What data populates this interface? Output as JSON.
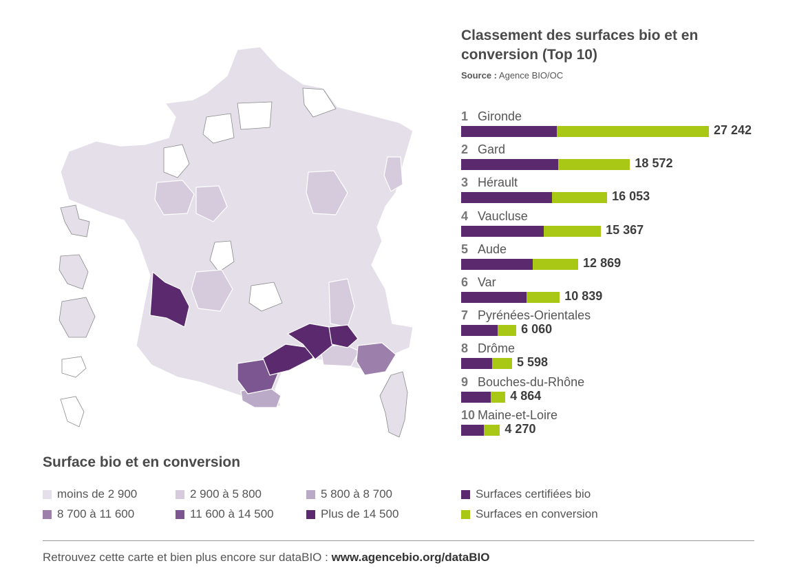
{
  "map": {
    "colors": {
      "lt2900": "#e4dfe9",
      "c2900_5800": "#d6cbdd",
      "c5800_8700": "#bba9c8",
      "c8700_11600": "#9c7fab",
      "c11600_14500": "#7c5690",
      "gt14500": "#5b2a6e",
      "border": "#ffffff",
      "outline": "#8a8a8a"
    }
  },
  "ranking": {
    "title": "Classement des surfaces bio et en conversion (Top 10)",
    "source_label": "Source :",
    "source_value": "Agence BIO/OC",
    "colors": {
      "bio": "#5b2a6e",
      "conversion": "#a8c815"
    },
    "items": [
      {
        "rank": "1",
        "name": "Gironde",
        "total": 27242,
        "total_label": "27 242",
        "bio": 10500
      },
      {
        "rank": "2",
        "name": "Gard",
        "total": 18572,
        "total_label": "18 572",
        "bio": 10700
      },
      {
        "rank": "3",
        "name": "Hérault",
        "total": 16053,
        "total_label": "16 053",
        "bio": 10000
      },
      {
        "rank": "4",
        "name": "Vaucluse",
        "total": 15367,
        "total_label": "15 367",
        "bio": 9050
      },
      {
        "rank": "5",
        "name": "Aude",
        "total": 12869,
        "total_label": "12 869",
        "bio": 7900
      },
      {
        "rank": "6",
        "name": "Var",
        "total": 10839,
        "total_label": "10 839",
        "bio": 7200
      },
      {
        "rank": "7",
        "name": "Pyrénées-Orientales",
        "total": 6060,
        "total_label": "6 060",
        "bio": 4000
      },
      {
        "rank": "8",
        "name": "Drôme",
        "total": 5598,
        "total_label": "5 598",
        "bio": 3400
      },
      {
        "rank": "9",
        "name": "Bouches-du-Rhône",
        "total": 4864,
        "total_label": "4 864",
        "bio": 3250
      },
      {
        "rank": "10",
        "name": "Maine-et-Loire",
        "total": 4270,
        "total_label": "4 270",
        "bio": 2500
      }
    ]
  },
  "legend": {
    "title": "Surface bio et en conversion",
    "classes": [
      {
        "label": "moins de 2 900",
        "color": "#e4dfe9"
      },
      {
        "label": "2 900 à 5 800",
        "color": "#d6cbdd"
      },
      {
        "label": "5 800 à 8 700",
        "color": "#bba9c8"
      },
      {
        "label": "8 700 à 11 600",
        "color": "#9c7fab"
      },
      {
        "label": "11 600 à 14 500",
        "color": "#7c5690"
      },
      {
        "label": "Plus de 14 500",
        "color": "#5b2a6e"
      }
    ],
    "bars": [
      {
        "label": "Surfaces certifiées bio",
        "color": "#5b2a6e"
      },
      {
        "label": "Surfaces en conversion",
        "color": "#a8c815"
      }
    ]
  },
  "footer": {
    "text": "Retrouvez cette carte et bien plus encore sur dataBIO : ",
    "link": "www.agencebio.org/dataBIO"
  }
}
